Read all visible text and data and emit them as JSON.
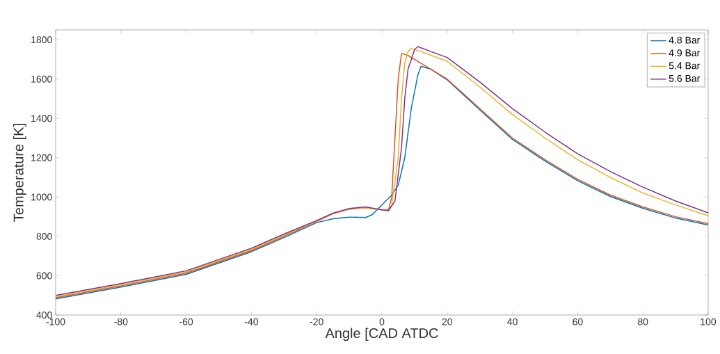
{
  "chart_data": {
    "type": "line",
    "xlabel": "Angle [CAD ATDC",
    "ylabel": "Temperature [K]",
    "xlim": [
      -100,
      100
    ],
    "ylim": [
      400,
      1850
    ],
    "xticks": [
      -100,
      -80,
      -60,
      -40,
      -20,
      0,
      20,
      40,
      60,
      80,
      100
    ],
    "yticks": [
      400,
      600,
      800,
      1000,
      1200,
      1400,
      1600,
      1800
    ],
    "legend": "top right",
    "grid": false,
    "marker": "none",
    "line_style": "solid",
    "series": [
      {
        "name": "4.8 Bar",
        "color": "#0072bd",
        "x": [
          -100,
          -80,
          -60,
          -40,
          -30,
          -20,
          -15,
          -10,
          -5,
          -3,
          0,
          3,
          5,
          7,
          9,
          11,
          12,
          15,
          20,
          30,
          40,
          50,
          60,
          70,
          80,
          90,
          100
        ],
        "values": [
          482,
          542,
          607,
          722,
          794,
          870,
          890,
          898,
          896,
          910,
          960,
          1010,
          1060,
          1200,
          1450,
          1620,
          1665,
          1650,
          1596,
          1443,
          1293,
          1183,
          1083,
          1003,
          943,
          893,
          858
        ]
      },
      {
        "name": "4.9 Bar",
        "color": "#d95319",
        "x": [
          -100,
          -80,
          -60,
          -40,
          -30,
          -20,
          -15,
          -10,
          -5,
          0,
          2,
          3,
          4,
          5,
          6,
          8,
          10,
          15,
          20,
          30,
          40,
          50,
          60,
          70,
          80,
          90,
          100
        ],
        "values": [
          488,
          548,
          613,
          728,
          800,
          875,
          915,
          938,
          945,
          935,
          935,
          1000,
          1300,
          1600,
          1730,
          1720,
          1700,
          1650,
          1600,
          1450,
          1300,
          1190,
          1090,
          1010,
          950,
          900,
          865
        ]
      },
      {
        "name": "5.4 Bar",
        "color": "#edb120",
        "x": [
          -100,
          -80,
          -60,
          -40,
          -30,
          -20,
          -15,
          -10,
          -5,
          0,
          2,
          3,
          5,
          6,
          7,
          8,
          9,
          12,
          20,
          30,
          40,
          50,
          60,
          70,
          80,
          90,
          100
        ],
        "values": [
          494,
          554,
          619,
          734,
          806,
          875,
          915,
          940,
          945,
          935,
          930,
          960,
          1200,
          1500,
          1680,
          1740,
          1755,
          1740,
          1690,
          1560,
          1420,
          1300,
          1190,
          1100,
          1020,
          960,
          905
        ]
      },
      {
        "name": "5.6 Bar",
        "color": "#7e2f8e",
        "x": [
          -100,
          -80,
          -60,
          -40,
          -30,
          -20,
          -15,
          -10,
          -5,
          0,
          2,
          4,
          6,
          7,
          8,
          9,
          10,
          11,
          15,
          20,
          30,
          40,
          50,
          60,
          70,
          80,
          90,
          100
        ],
        "values": [
          500,
          560,
          625,
          740,
          812,
          880,
          918,
          942,
          950,
          935,
          930,
          980,
          1250,
          1500,
          1650,
          1700,
          1750,
          1765,
          1740,
          1710,
          1585,
          1450,
          1330,
          1220,
          1130,
          1050,
          980,
          920
        ]
      }
    ]
  }
}
